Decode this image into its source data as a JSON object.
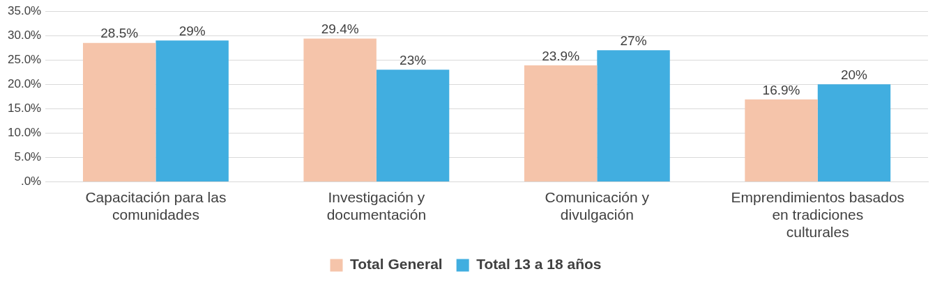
{
  "chart_data": {
    "type": "bar",
    "categories": [
      "Capacitación para las comunidades",
      "Investigación y documentación",
      "Comunicación y divulgación",
      "Emprendimientos basados en tradiciones culturales"
    ],
    "series": [
      {
        "name": "Total General",
        "color": "#f5c4aa",
        "values": [
          28.5,
          29.4,
          23.9,
          16.9
        ],
        "value_labels": [
          "28.5%",
          "29.4%",
          "23.9%",
          "16.9%"
        ]
      },
      {
        "name": "Total 13 a 18 años",
        "color": "#41aee0",
        "values": [
          29,
          23,
          27,
          20
        ],
        "value_labels": [
          "29%",
          "23%",
          "27%",
          "20%"
        ]
      }
    ],
    "ylim": [
      0,
      35
    ],
    "yticks": [
      {
        "value": 0,
        "label": ".0%"
      },
      {
        "value": 5,
        "label": "5.0%"
      },
      {
        "value": 10,
        "label": "10.0%"
      },
      {
        "value": 15,
        "label": "15.0%"
      },
      {
        "value": 20,
        "label": "20.0%"
      },
      {
        "value": 25,
        "label": "25.0%"
      },
      {
        "value": 30,
        "label": "30.0%"
      },
      {
        "value": 35,
        "label": "35.0%"
      }
    ],
    "grid": "y",
    "legend": "bottom"
  }
}
